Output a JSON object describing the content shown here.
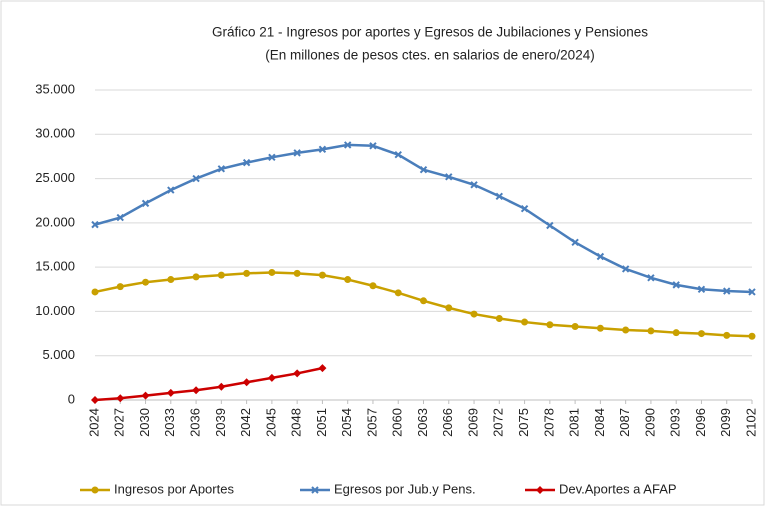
{
  "chart_data": {
    "type": "line",
    "title": "Gráfico 21 - Ingresos por aportes y Egresos de Jubilaciones y Pensiones",
    "subtitle": "(En millones de pesos ctes. en salarios de enero/2024)",
    "x": [
      2024,
      2027,
      2030,
      2033,
      2036,
      2039,
      2042,
      2045,
      2048,
      2051,
      2054,
      2057,
      2060,
      2063,
      2066,
      2069,
      2072,
      2075,
      2078,
      2081,
      2084,
      2087,
      2090,
      2093,
      2096,
      2099,
      2102
    ],
    "xlim": [
      2024,
      2102
    ],
    "xticks": [
      2024,
      2027,
      2030,
      2033,
      2036,
      2039,
      2042,
      2045,
      2048,
      2051,
      2054,
      2057,
      2060,
      2063,
      2066,
      2069,
      2072,
      2075,
      2078,
      2081,
      2084,
      2087,
      2090,
      2093,
      2096,
      2099,
      2102
    ],
    "ylim": [
      0,
      35000
    ],
    "yticks": [
      0,
      {
        "value": 5000,
        "label": "5.000"
      },
      {
        "value": 10000,
        "label": "10.000"
      },
      {
        "value": 15000,
        "label": "15.000"
      },
      {
        "value": 20000,
        "label": "20.000"
      },
      {
        "value": 25000,
        "label": "25.000"
      },
      {
        "value": 30000,
        "label": "30.000"
      },
      {
        "value": 35000,
        "label": "35.000"
      }
    ],
    "grid": true,
    "legend": "bottom",
    "series": [
      {
        "name": "Ingresos por Aportes",
        "color": "#c9a000",
        "marker": "circle",
        "values": [
          12200,
          12800,
          13300,
          13600,
          13900,
          14100,
          14300,
          14400,
          14300,
          14100,
          13600,
          12900,
          12100,
          11200,
          10400,
          9700,
          9200,
          8800,
          8500,
          8300,
          8100,
          7900,
          7800,
          7600,
          7500,
          7300,
          7200
        ]
      },
      {
        "name": "Egresos por Jub.y Pens.",
        "color": "#4a7ebb",
        "marker": "x",
        "values": [
          19800,
          20600,
          22200,
          23700,
          25000,
          26100,
          26800,
          27400,
          27900,
          28300,
          28800,
          28700,
          27700,
          26000,
          25200,
          24300,
          23000,
          21600,
          19700,
          17800,
          16200,
          14800,
          13800,
          13000,
          12500,
          12300,
          12200
        ]
      },
      {
        "name": "Dev.Aportes a AFAP",
        "color": "#cc0000",
        "marker": "diamond",
        "values": [
          0,
          200,
          500,
          800,
          1100,
          1500,
          2000,
          2500,
          3000,
          3600,
          null,
          null,
          null,
          null,
          null,
          null,
          null,
          null,
          null,
          null,
          null,
          null,
          null,
          null,
          null,
          null,
          null
        ]
      }
    ]
  }
}
